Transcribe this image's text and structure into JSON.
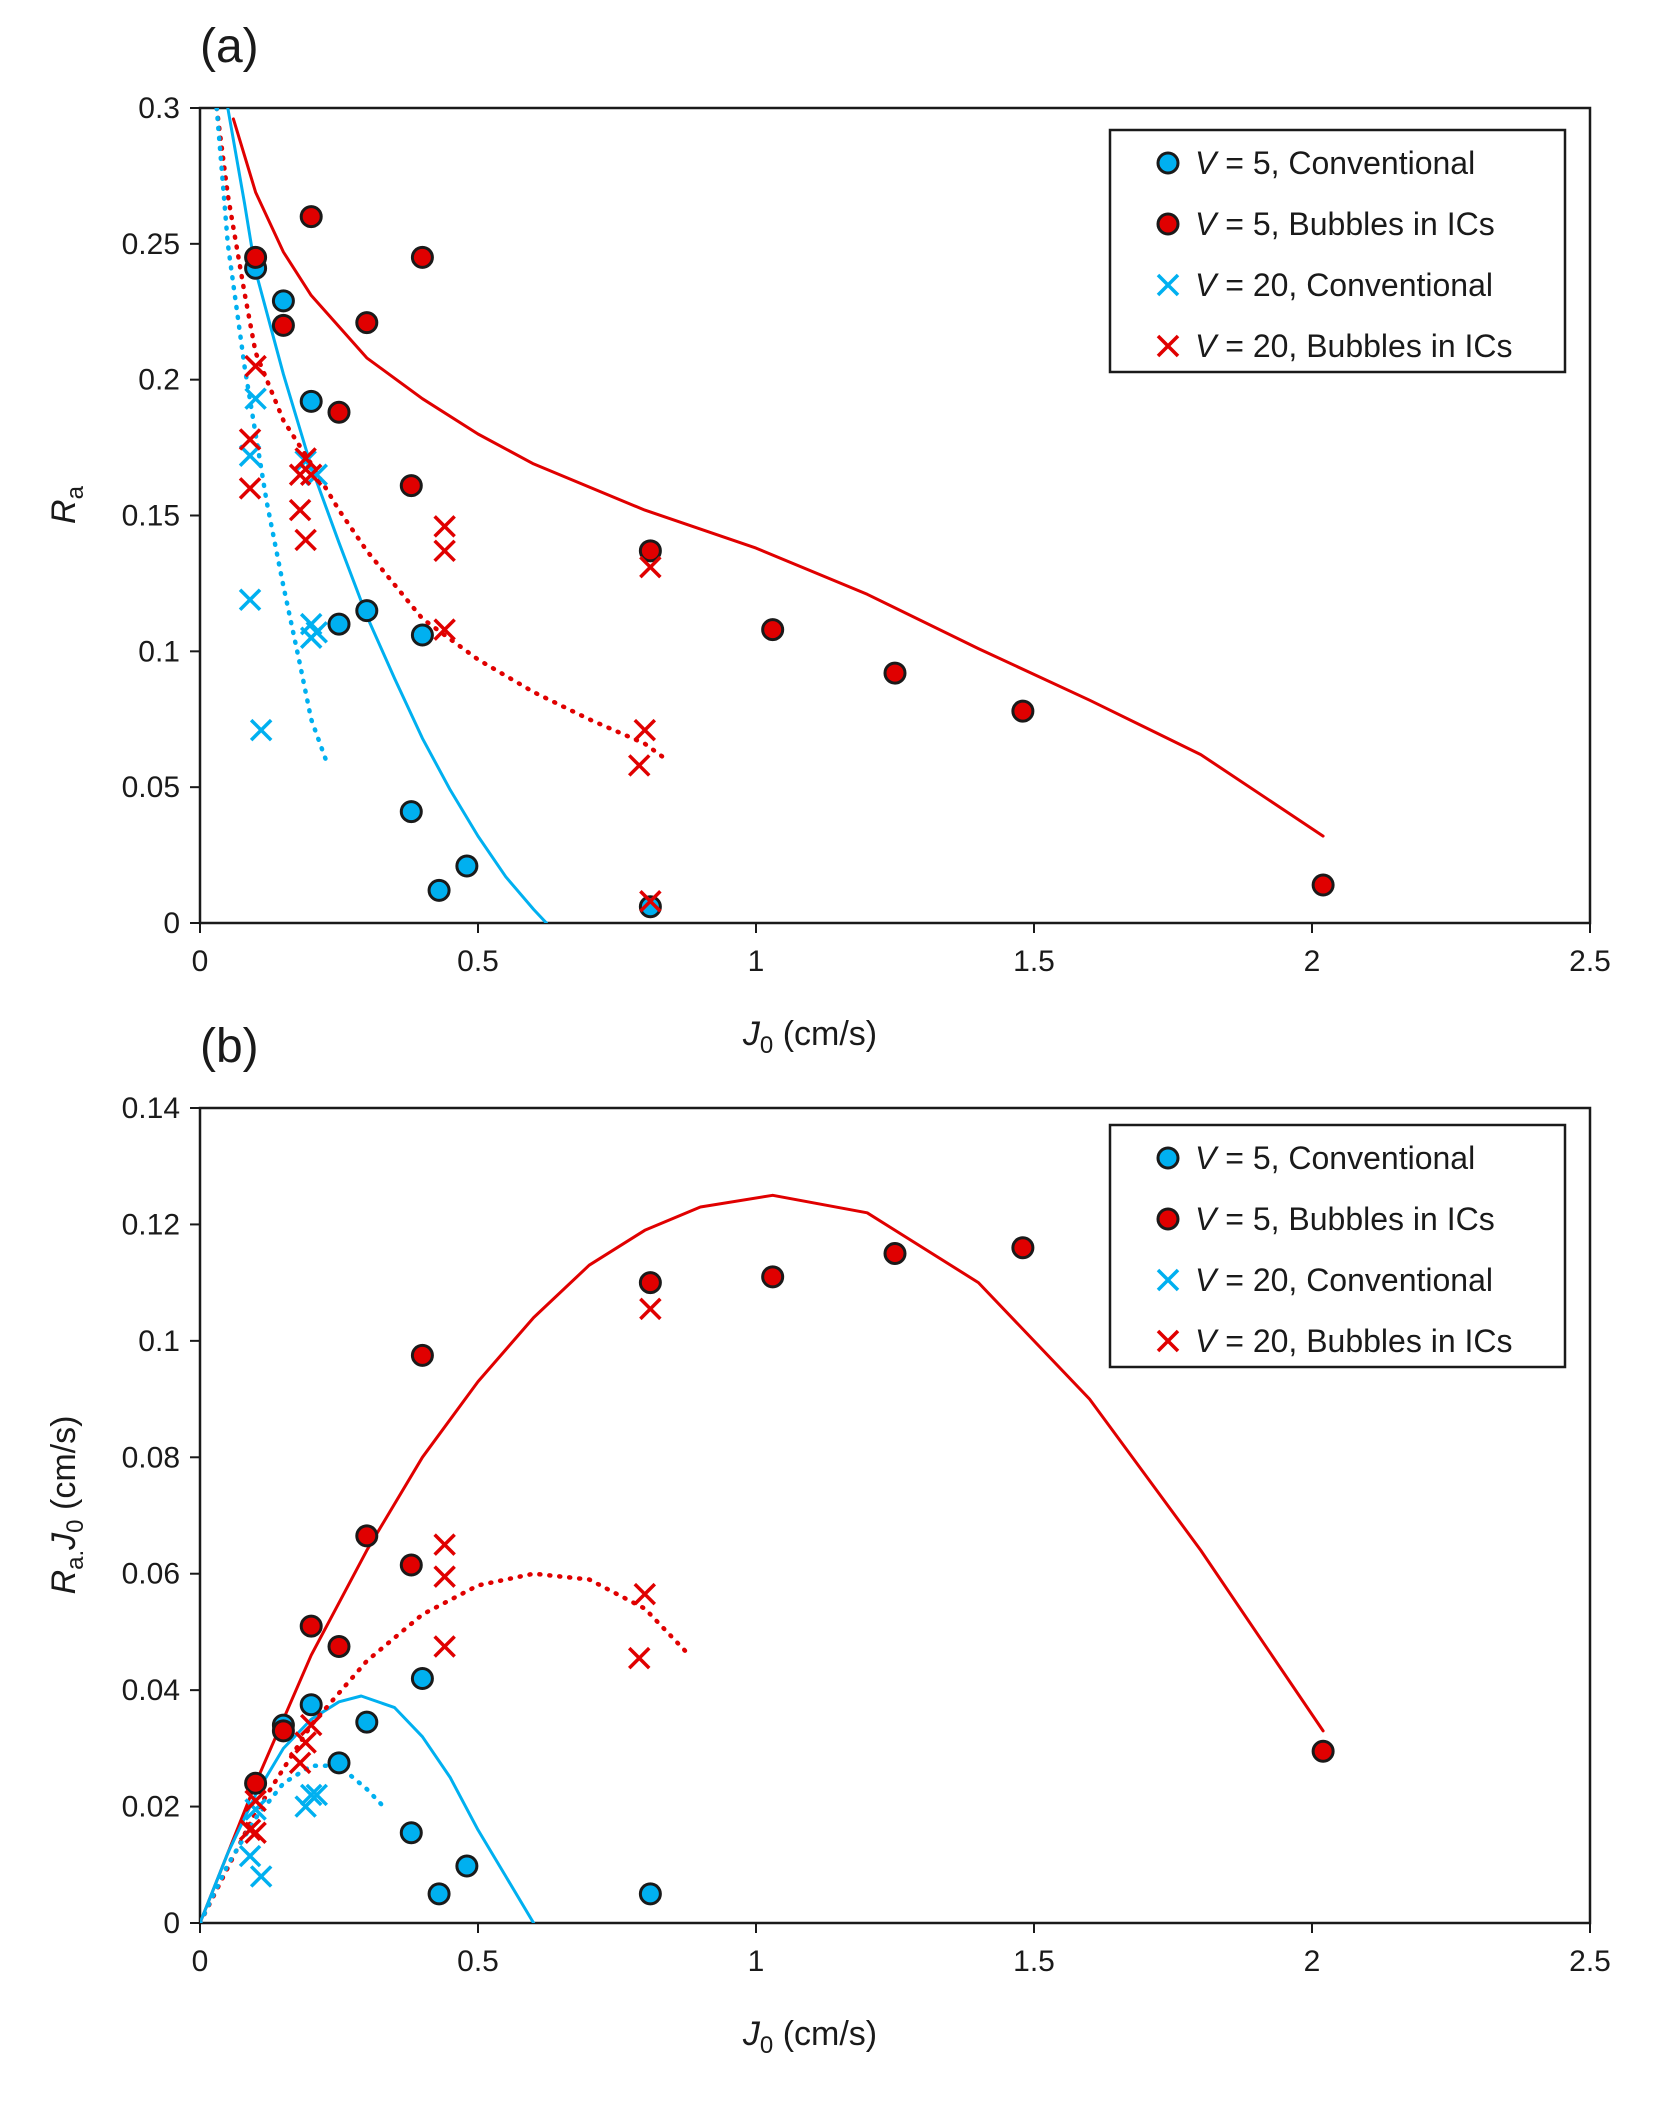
{
  "colors": {
    "conventional": "#00b0f0",
    "bubbles": "#e00000",
    "axis": "#1a1a1a",
    "marker_edge": "#1a1a1a",
    "background": "#ffffff"
  },
  "legend_labels": [
    {
      "var": "V",
      "text": " = 5, Conventional"
    },
    {
      "var": "V",
      "text": " = 5, Bubbles in ICs"
    },
    {
      "var": "V",
      "text": " = 20, Conventional"
    },
    {
      "var": "V",
      "text": " = 20, Bubbles in ICs"
    }
  ],
  "chart_data": [
    {
      "type": "scatter",
      "panel_label": "(a)",
      "xlabel": {
        "main": "J",
        "sub": "0",
        "rest": " (cm/s)"
      },
      "ylabel": {
        "main": "R",
        "sub": "a",
        "rest": ""
      },
      "xlim": [
        0,
        2.5
      ],
      "ylim": [
        0,
        0.3
      ],
      "x_ticks": [
        0,
        0.5,
        1,
        1.5,
        2,
        2.5
      ],
      "x_tick_labels": [
        "0",
        "0.5",
        "1",
        "1.5",
        "2",
        "2.5"
      ],
      "y_ticks": [
        0,
        0.05,
        0.1,
        0.15,
        0.2,
        0.25,
        0.3
      ],
      "y_tick_labels": [
        "0",
        "0.05",
        "0.1",
        "0.15",
        "0.2",
        "0.25",
        "0.3"
      ],
      "legend_position": "top-right",
      "series": [
        {
          "name": "V = 5, Conventional",
          "marker": "circle",
          "color": "#00b0f0",
          "x": [
            0.1,
            0.15,
            0.2,
            0.25,
            0.3,
            0.4,
            0.38,
            0.43,
            0.48,
            0.81
          ],
          "y": [
            0.241,
            0.229,
            0.192,
            0.11,
            0.115,
            0.106,
            0.041,
            0.012,
            0.021,
            0.006
          ]
        },
        {
          "name": "V = 5, Bubbles in ICs",
          "marker": "circle",
          "color": "#e00000",
          "x": [
            0.1,
            0.15,
            0.2,
            0.25,
            0.3,
            0.4,
            0.38,
            0.81,
            1.03,
            1.25,
            1.48,
            2.02
          ],
          "y": [
            0.245,
            0.22,
            0.26,
            0.188,
            0.221,
            0.245,
            0.161,
            0.137,
            0.108,
            0.092,
            0.078,
            0.014
          ]
        },
        {
          "name": "V = 20, Conventional",
          "marker": "x",
          "color": "#00b0f0",
          "x": [
            0.1,
            0.09,
            0.09,
            0.11,
            0.19,
            0.2,
            0.21,
            0.2,
            0.21
          ],
          "y": [
            0.193,
            0.172,
            0.119,
            0.071,
            0.17,
            0.11,
            0.165,
            0.105,
            0.107
          ]
        },
        {
          "name": "V = 20, Bubbles in ICs",
          "marker": "x",
          "color": "#e00000",
          "x": [
            0.1,
            0.09,
            0.09,
            0.19,
            0.18,
            0.18,
            0.19,
            0.2,
            0.44,
            0.44,
            0.44,
            0.8,
            0.81,
            0.79,
            0.81
          ],
          "y": [
            0.205,
            0.178,
            0.16,
            0.171,
            0.165,
            0.152,
            0.141,
            0.165,
            0.146,
            0.137,
            0.108,
            0.071,
            0.131,
            0.058,
            0.008
          ]
        }
      ],
      "fit_curves": [
        {
          "name": "V = 5, Bubbles in ICs fit",
          "color": "#e00000",
          "style": "solid",
          "x": [
            0.06,
            0.1,
            0.15,
            0.2,
            0.3,
            0.4,
            0.5,
            0.6,
            0.8,
            1.0,
            1.2,
            1.4,
            1.6,
            1.8,
            2.02
          ],
          "y": [
            0.296,
            0.269,
            0.247,
            0.231,
            0.208,
            0.193,
            0.18,
            0.169,
            0.152,
            0.138,
            0.121,
            0.101,
            0.082,
            0.062,
            0.032
          ]
        },
        {
          "name": "V = 5, Conventional fit",
          "color": "#00b0f0",
          "style": "solid",
          "x": [
            0.05,
            0.08,
            0.1,
            0.15,
            0.2,
            0.25,
            0.3,
            0.35,
            0.4,
            0.45,
            0.5,
            0.55,
            0.6,
            0.623
          ],
          "y": [
            0.3,
            0.265,
            0.24,
            0.202,
            0.168,
            0.14,
            0.113,
            0.09,
            0.068,
            0.049,
            0.032,
            0.017,
            0.005,
            0.0
          ]
        },
        {
          "name": "V = 20, Bubbles in ICs fit",
          "color": "#e00000",
          "style": "dotted",
          "x": [
            0.03,
            0.05,
            0.08,
            0.1,
            0.15,
            0.2,
            0.25,
            0.3,
            0.4,
            0.5,
            0.6,
            0.7,
            0.8,
            0.84
          ],
          "y": [
            0.3,
            0.268,
            0.232,
            0.21,
            0.185,
            0.169,
            0.152,
            0.137,
            0.112,
            0.097,
            0.085,
            0.075,
            0.066,
            0.06
          ]
        },
        {
          "name": "V = 20, Conventional fit",
          "color": "#00b0f0",
          "style": "dotted",
          "x": [
            0.03,
            0.05,
            0.08,
            0.1,
            0.12,
            0.15,
            0.18,
            0.2,
            0.23
          ],
          "y": [
            0.3,
            0.25,
            0.205,
            0.18,
            0.155,
            0.124,
            0.095,
            0.075,
            0.058
          ]
        }
      ]
    },
    {
      "type": "scatter",
      "panel_label": "(b)",
      "xlabel": {
        "main": "J",
        "sub": "0",
        "rest": " (cm/s)"
      },
      "ylabel": {
        "main": "R",
        "sub": "a.",
        "rest": "J",
        "sub2": "0",
        "rest2": " (cm/s)"
      },
      "xlim": [
        0,
        2.5
      ],
      "ylim": [
        0,
        0.14
      ],
      "x_ticks": [
        0,
        0.5,
        1,
        1.5,
        2,
        2.5
      ],
      "x_tick_labels": [
        "0",
        "0.5",
        "1",
        "1.5",
        "2",
        "2.5"
      ],
      "y_ticks": [
        0,
        0.02,
        0.04,
        0.06,
        0.08,
        0.1,
        0.12,
        0.14
      ],
      "y_tick_labels": [
        "0",
        "0.02",
        "0.04",
        "0.06",
        "0.08",
        "0.1",
        "0.12",
        "0.14"
      ],
      "legend_position": "top-right",
      "series": [
        {
          "name": "V = 5, Conventional",
          "marker": "circle",
          "color": "#00b0f0",
          "x": [
            0.15,
            0.2,
            0.25,
            0.3,
            0.4,
            0.38,
            0.43,
            0.48,
            0.81
          ],
          "y": [
            0.034,
            0.0375,
            0.0275,
            0.0345,
            0.042,
            0.0155,
            0.005,
            0.0098,
            0.005
          ]
        },
        {
          "name": "V = 5, Bubbles in ICs",
          "marker": "circle",
          "color": "#e00000",
          "x": [
            0.1,
            0.15,
            0.2,
            0.25,
            0.3,
            0.38,
            0.4,
            0.81,
            1.03,
            1.25,
            1.48,
            2.02
          ],
          "y": [
            0.024,
            0.033,
            0.051,
            0.0475,
            0.0665,
            0.0615,
            0.0975,
            0.11,
            0.111,
            0.115,
            0.116,
            0.0295
          ]
        },
        {
          "name": "V = 20, Conventional",
          "marker": "x",
          "color": "#00b0f0",
          "x": [
            0.1,
            0.09,
            0.11,
            0.2,
            0.21,
            0.19
          ],
          "y": [
            0.0195,
            0.0115,
            0.008,
            0.022,
            0.022,
            0.02
          ]
        },
        {
          "name": "V = 20, Bubbles in ICs",
          "marker": "x",
          "color": "#e00000",
          "x": [
            0.1,
            0.09,
            0.1,
            0.19,
            0.18,
            0.2,
            0.44,
            0.44,
            0.44,
            0.8,
            0.79,
            0.81
          ],
          "y": [
            0.021,
            0.016,
            0.0155,
            0.031,
            0.0275,
            0.034,
            0.065,
            0.0595,
            0.0475,
            0.0565,
            0.0455,
            0.1055
          ]
        }
      ],
      "fit_curves": [
        {
          "name": "V = 5, Bubbles in ICs fit",
          "color": "#e00000",
          "style": "solid",
          "x": [
            0.0,
            0.1,
            0.2,
            0.3,
            0.4,
            0.5,
            0.6,
            0.7,
            0.8,
            0.9,
            1.03,
            1.2,
            1.4,
            1.6,
            1.8,
            2.02
          ],
          "y": [
            0.0,
            0.024,
            0.046,
            0.064,
            0.08,
            0.093,
            0.104,
            0.113,
            0.119,
            0.123,
            0.125,
            0.122,
            0.11,
            0.09,
            0.064,
            0.033
          ]
        },
        {
          "name": "V = 5, Conventional fit",
          "color": "#00b0f0",
          "style": "solid",
          "x": [
            0.0,
            0.05,
            0.1,
            0.15,
            0.2,
            0.25,
            0.29,
            0.35,
            0.4,
            0.45,
            0.5,
            0.55,
            0.6
          ],
          "y": [
            0.0,
            0.012,
            0.022,
            0.03,
            0.035,
            0.038,
            0.039,
            0.037,
            0.032,
            0.025,
            0.016,
            0.008,
            0.0
          ]
        },
        {
          "name": "V = 20, Bubbles in ICs fit",
          "color": "#e00000",
          "style": "dotted",
          "x": [
            0.0,
            0.1,
            0.2,
            0.3,
            0.4,
            0.5,
            0.6,
            0.7,
            0.8,
            0.88
          ],
          "y": [
            0.0,
            0.019,
            0.034,
            0.045,
            0.053,
            0.058,
            0.06,
            0.059,
            0.054,
            0.046
          ]
        },
        {
          "name": "V = 20, Conventional fit",
          "color": "#00b0f0",
          "style": "dotted",
          "x": [
            0.0,
            0.05,
            0.1,
            0.15,
            0.2,
            0.25,
            0.3,
            0.33
          ],
          "y": [
            0.0,
            0.01,
            0.018,
            0.024,
            0.027,
            0.027,
            0.023,
            0.02
          ]
        }
      ]
    }
  ]
}
